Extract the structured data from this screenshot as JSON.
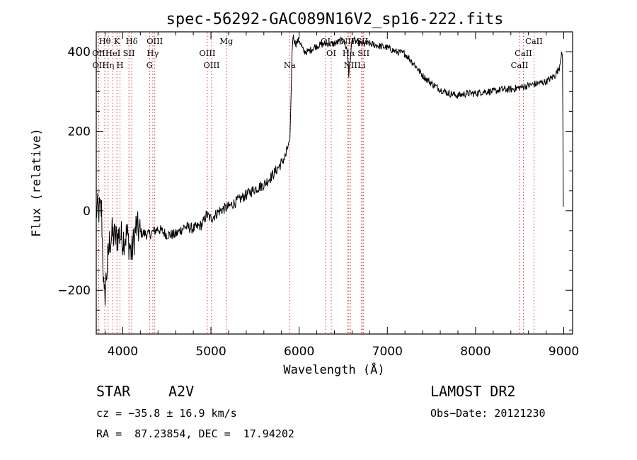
{
  "chart_data": {
    "type": "line",
    "title": "spec-56292-GAC089N16V2_sp16-222.fits",
    "xlabel": "Wavelength (Å)",
    "ylabel": "Flux (relative)",
    "xlim": [
      3700,
      9100
    ],
    "ylim": [
      -310,
      450
    ],
    "x_ticks": [
      4000,
      5000,
      6000,
      7000,
      8000,
      9000
    ],
    "y_ticks": [
      -200,
      0,
      200,
      400
    ],
    "series": [
      {
        "color": "#000000",
        "x": [
          3700,
          3760,
          3790,
          3820,
          3850,
          3880,
          3920,
          3960,
          4000,
          4050,
          4100,
          4150,
          4200,
          4300,
          4400,
          4500,
          4600,
          4700,
          4800,
          4900,
          4950,
          5000,
          5100,
          5200,
          5300,
          5400,
          5500,
          5600,
          5700,
          5800,
          5850,
          5880,
          5895,
          5910,
          5920,
          5930,
          5960,
          6000,
          6050,
          6100,
          6200,
          6300,
          6350,
          6400,
          6500,
          6550,
          6563,
          6600,
          6700,
          6800,
          6900,
          7000,
          7100,
          7200,
          7300,
          7400,
          7500,
          7600,
          7700,
          7800,
          7900,
          8000,
          8100,
          8200,
          8300,
          8400,
          8500,
          8600,
          8700,
          8800,
          8900,
          8950,
          8975,
          8985,
          8990,
          8995
        ],
        "y": [
          0,
          0,
          -230,
          -150,
          -80,
          -60,
          -70,
          -60,
          -70,
          -60,
          -110,
          -40,
          -55,
          -60,
          -45,
          -60,
          -60,
          -40,
          -45,
          -35,
          -10,
          -20,
          0,
          10,
          25,
          40,
          55,
          65,
          90,
          120,
          140,
          170,
          180,
          300,
          400,
          440,
          420,
          430,
          400,
          400,
          415,
          420,
          420,
          420,
          430,
          400,
          340,
          430,
          420,
          420,
          415,
          410,
          400,
          395,
          370,
          340,
          320,
          305,
          295,
          290,
          295,
          295,
          300,
          300,
          305,
          305,
          310,
          315,
          320,
          325,
          340,
          360,
          400,
          390,
          220,
          10
        ]
      }
    ],
    "line_markers": [
      {
        "label": "Hθ",
        "x": 3797,
        "row": 1
      },
      {
        "label": "OII",
        "x": 3727,
        "row": 2
      },
      {
        "label": "OII",
        "x": 3729,
        "row": 3
      },
      {
        "label": "Hη",
        "x": 3835,
        "row": 3
      },
      {
        "label": "HeI",
        "x": 3889,
        "row": 2
      },
      {
        "label": "K",
        "x": 3934,
        "row": 1
      },
      {
        "label": "H",
        "x": 3969,
        "row": 3
      },
      {
        "label": "SII",
        "x": 4070,
        "row": 2
      },
      {
        "label": "Hδ",
        "x": 4102,
        "row": 1
      },
      {
        "label": "OIII",
        "x": 4363,
        "row": 1
      },
      {
        "label": "Hγ",
        "x": 4341,
        "row": 2
      },
      {
        "label": "G",
        "x": 4305,
        "row": 3
      },
      {
        "label": "OIII",
        "x": 4959,
        "row": 2
      },
      {
        "label": "OIII",
        "x": 5007,
        "row": 3
      },
      {
        "label": "Mg",
        "x": 5175,
        "row": 1
      },
      {
        "label": "Na",
        "x": 5893,
        "row": 3
      },
      {
        "label": "OI",
        "x": 6300,
        "row": 1
      },
      {
        "label": "OI",
        "x": 6364,
        "row": 2
      },
      {
        "label": "NII",
        "x": 6548,
        "row": 1
      },
      {
        "label": "Hα",
        "x": 6563,
        "row": 2
      },
      {
        "label": "NII",
        "x": 6583,
        "row": 3
      },
      {
        "label": "SII",
        "x": 6716,
        "row": 1
      },
      {
        "label": "SII",
        "x": 6731,
        "row": 2
      },
      {
        "label": "Li",
        "x": 6707,
        "row": 3
      },
      {
        "label": "CaII",
        "x": 8662,
        "row": 1
      },
      {
        "label": "CaII",
        "x": 8542,
        "row": 2
      },
      {
        "label": "CaII",
        "x": 8498,
        "row": 3
      }
    ],
    "marker_color": "#d93a3a",
    "grid": false,
    "legend": "none"
  },
  "info": {
    "object_class": "STAR",
    "subclass": "A2V",
    "survey": "LAMOST DR2",
    "cz": "cz = −35.8 ± 16.9 km/s",
    "obs_date": "Obs−Date: 20121230",
    "coords": "RA =  87.23854, DEC =  17.94202"
  }
}
